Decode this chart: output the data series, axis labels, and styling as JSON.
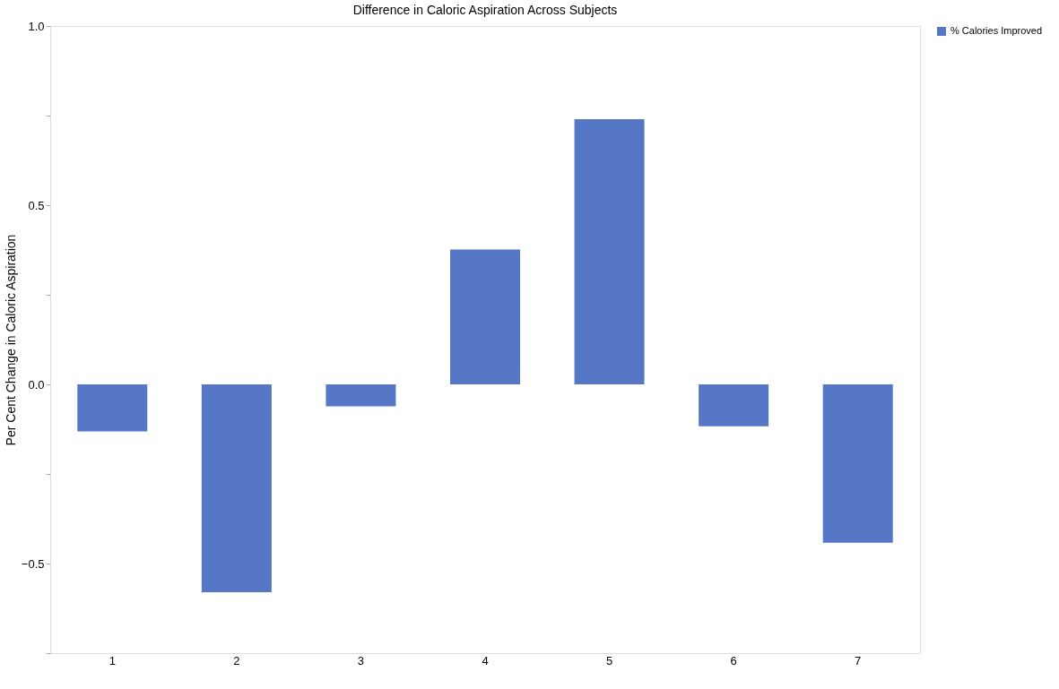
{
  "chart_data": {
    "type": "bar",
    "title": "Difference in Caloric Aspiration Across Subjects",
    "ylabel": "Per Cent Change in Caloric Aspiration",
    "categories": [
      "1",
      "2",
      "3",
      "4",
      "5",
      "6",
      "7"
    ],
    "series": [
      {
        "name": "% Calories Improved",
        "color": "#5577c5",
        "values": [
          -0.131,
          -0.58,
          -0.061,
          0.376,
          0.74,
          -0.117,
          -0.442
        ]
      }
    ],
    "ylim": [
      -0.75,
      1.0
    ],
    "yticks": [
      {
        "value": -0.75,
        "label": null
      },
      {
        "value": -0.5,
        "label": "−0.5"
      },
      {
        "value": -0.25,
        "label": null
      },
      {
        "value": 0,
        "label": "0.0"
      },
      {
        "value": 0.25,
        "label": null
      },
      {
        "value": 0.5,
        "label": "0.5"
      },
      {
        "value": 0.75,
        "label": null
      },
      {
        "value": 1.0,
        "label": "1.0"
      }
    ],
    "grid": false,
    "legend": "top right"
  }
}
